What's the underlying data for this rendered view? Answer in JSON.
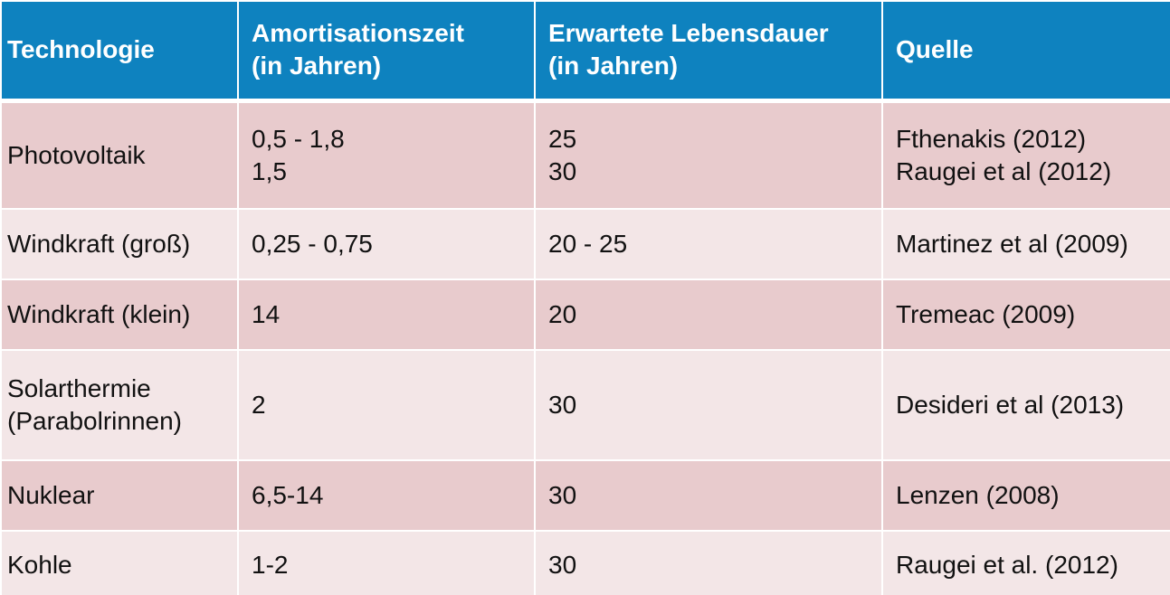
{
  "header": {
    "col1": "Technologie",
    "col2_line1": "Amortisationszeit",
    "col2_line2": "(in Jahren)",
    "col3_line1": "Erwartete Lebensdauer",
    "col3_line2": "(in Jahren)",
    "col4": "Quelle"
  },
  "rows": [
    {
      "technology": "Photovoltaik",
      "payback_1": "0,5 - 1,8",
      "payback_2": "1,5",
      "lifetime_1": "25",
      "lifetime_2": "30",
      "source_1": "Fthenakis (2012)",
      "source_2": "Raugei et al (2012)"
    },
    {
      "technology": "Windkraft (groß)",
      "payback": "0,25 - 0,75",
      "lifetime": "20 - 25",
      "source": "Martinez et al (2009)"
    },
    {
      "technology": "Windkraft (klein)",
      "payback": "14",
      "lifetime": "20",
      "source": "Tremeac (2009)"
    },
    {
      "technology_1": "Solarthermie",
      "technology_2": "(Parabolrinnen)",
      "payback": "2",
      "lifetime": "30",
      "source": "Desideri et al (2013)"
    },
    {
      "technology": "Nuklear",
      "payback": "6,5-14",
      "lifetime": "30",
      "source": "Lenzen (2008)"
    },
    {
      "technology": "Kohle",
      "payback": "1-2",
      "lifetime": "30",
      "source": "Raugei et al. (2012)"
    }
  ],
  "colors": {
    "header_bg": "#0e82bf",
    "row_dark": "#e8cbcd",
    "row_light": "#f3e6e7"
  }
}
